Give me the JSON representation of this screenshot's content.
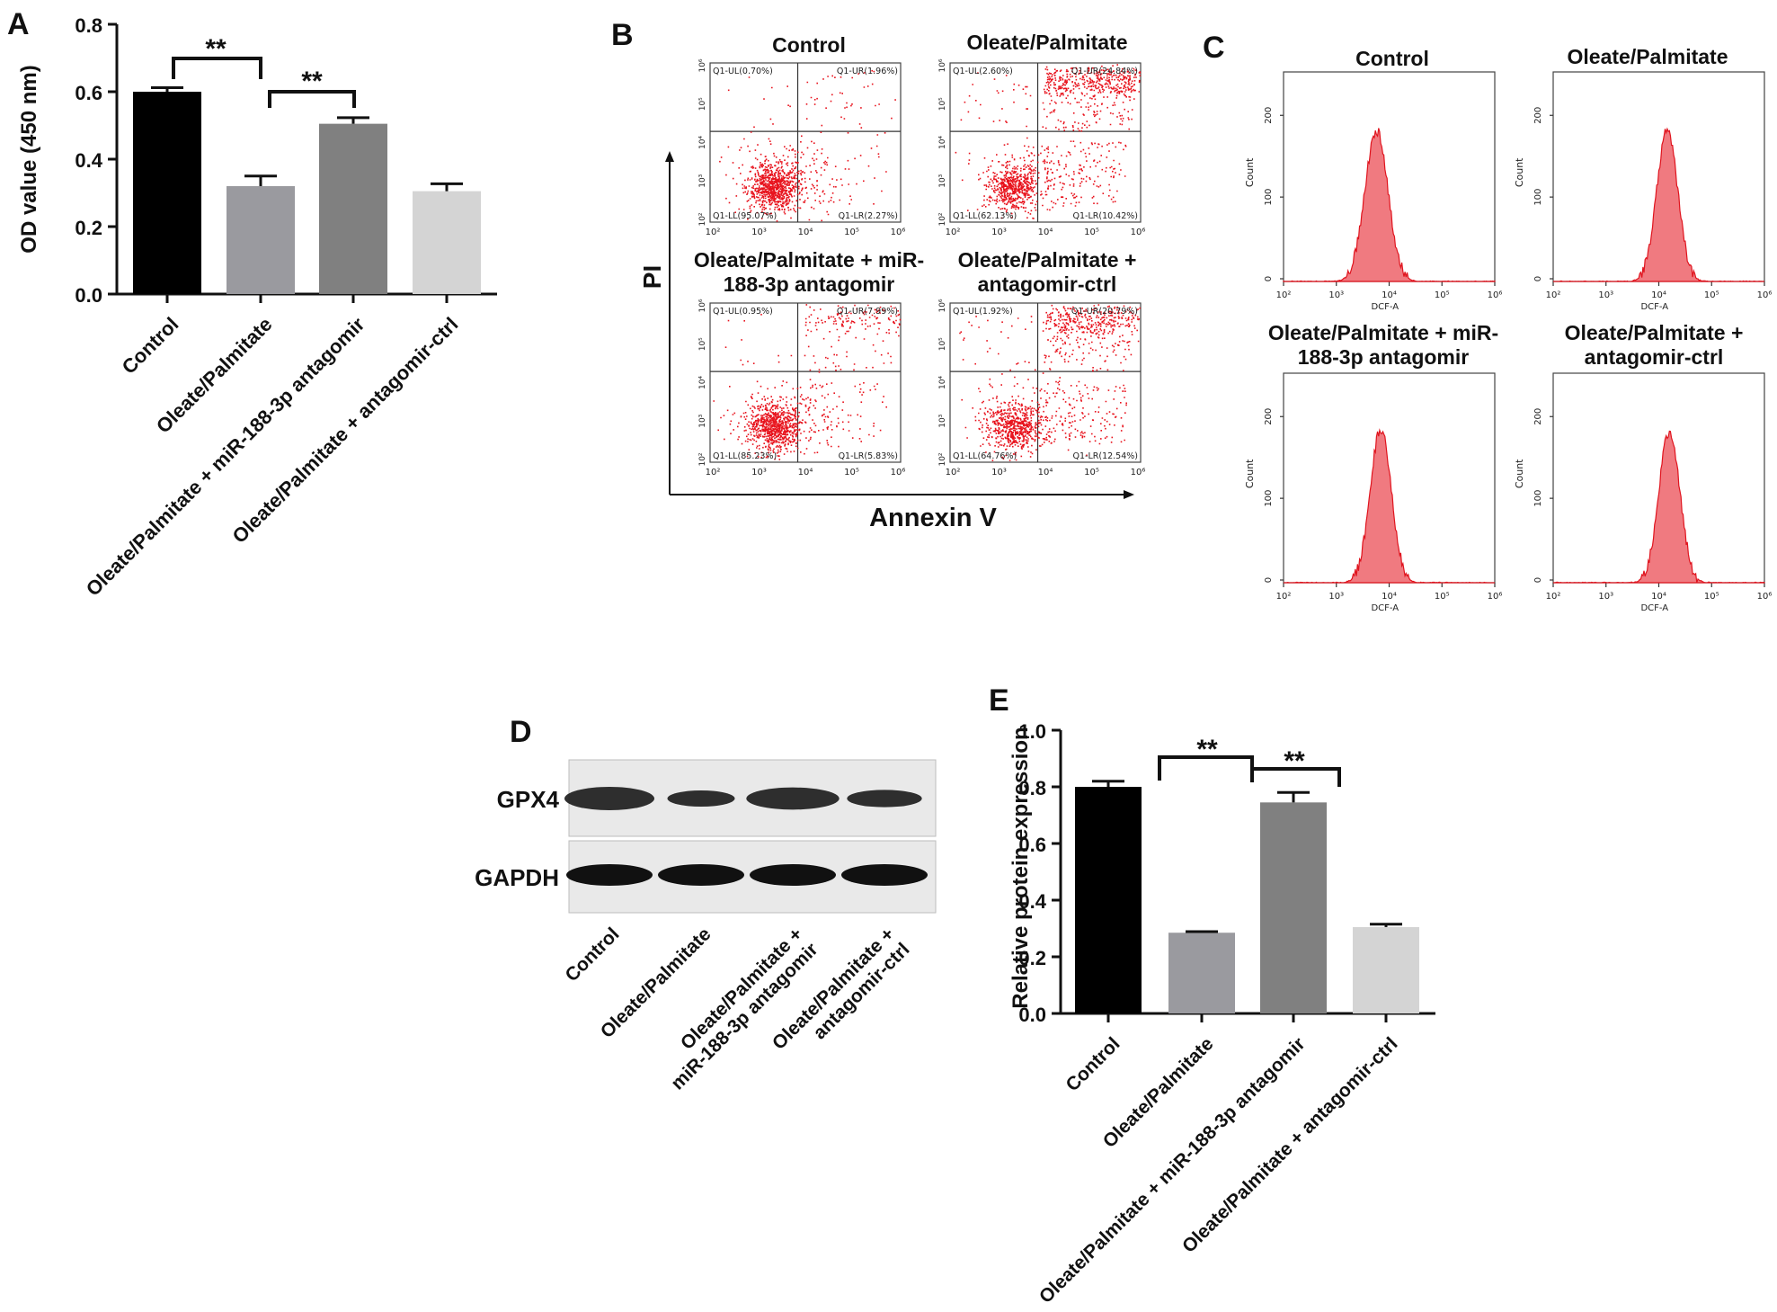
{
  "colors": {
    "control": "#000000",
    "oleate": "#9a9a9f",
    "antagomir": "#808080",
    "ctrl": "#d4d4d4",
    "flow": "#e8131d",
    "hist_fill": "#f07a80",
    "hist_line": "#e0141e"
  },
  "panels": {
    "A": "A",
    "B": "B",
    "C": "C",
    "D": "D",
    "E": "E"
  },
  "chart_data": [
    {
      "id": "A",
      "type": "bar",
      "ylabel": "OD value (450 nm)",
      "ylim": [
        0,
        0.8
      ],
      "yticks": [
        "0.0",
        "0.2",
        "0.4",
        "0.6",
        "0.8"
      ],
      "categories": [
        "Control",
        "Oleate/Palmitate",
        "Oleate/Palmitate + miR-188-3p antagomir",
        "Oleate/Palmitate + antagomir-ctrl"
      ],
      "values": [
        0.6,
        0.32,
        0.505,
        0.305
      ],
      "errors": [
        0.012,
        0.03,
        0.018,
        0.022
      ],
      "significance": [
        "**",
        "**"
      ]
    },
    {
      "id": "E",
      "type": "bar",
      "ylabel": "Relative protein expression",
      "ylim": [
        0,
        1.0
      ],
      "yticks": [
        "0.0",
        "0.2",
        "0.4",
        "0.6",
        "0.8",
        "1.0"
      ],
      "categories": [
        "Control",
        "Oleate/Palmitate",
        "Oleate/Palmitate + miR-188-3p antagomir",
        "Oleate/Palmitate + antagomir-ctrl"
      ],
      "values": [
        0.8,
        0.285,
        0.745,
        0.305
      ],
      "errors": [
        0.02,
        0.004,
        0.035,
        0.01
      ],
      "significance": [
        "**",
        "**"
      ]
    }
  ],
  "flow": {
    "xlabel": "Annexin V",
    "ylabel": "PI",
    "ticks": [
      "10²",
      "10³",
      "10⁴",
      "10⁵",
      "10⁶"
    ],
    "ytick_labels": [
      "10²",
      "10³",
      "10⁴",
      "10⁵",
      "10⁶"
    ],
    "plots": [
      {
        "title1": "Control",
        "title2": "",
        "ul": "Q1-UL(0.70%)",
        "ur": "Q1-UR(1.96%)",
        "ll": "Q1-LL(95.07%)",
        "lr": "Q1-LR(2.27%)"
      },
      {
        "title1": "Oleate/Palmitate",
        "title2": "",
        "ul": "Q1-UL(2.60%)",
        "ur": "Q1-UR(24.84%)",
        "ll": "Q1-LL(62.13%)",
        "lr": "Q1-LR(10.42%)"
      },
      {
        "title1": "Oleate/Palmitate + miR-",
        "title2": "188-3p antagomir",
        "ul": "Q1-UL(0.95%)",
        "ur": "Q1-UR(7.99%)",
        "ll": "Q1-LL(85.23%)",
        "lr": "Q1-LR(5.83%)"
      },
      {
        "title1": "Oleate/Palmitate +",
        "title2": "antagomir-ctrl",
        "ul": "Q1-UL(1.92%)",
        "ur": "Q1-UR(20.79%)",
        "ll": "Q1-LL(64.76%)",
        "lr": "Q1-LR(12.54%)"
      }
    ]
  },
  "histograms": {
    "xlabel": "DCF-A",
    "ylabel": "Count",
    "yticks": [
      "0",
      "100",
      "200"
    ],
    "xticks": [
      "10²",
      "10³",
      "10⁴",
      "10⁵",
      "10⁶"
    ],
    "plots": [
      {
        "title1": "Control",
        "title2": ""
      },
      {
        "title1": "Oleate/Palmitate",
        "title2": ""
      },
      {
        "title1": "Oleate/Palmitate + miR-",
        "title2": "188-3p antagomir"
      },
      {
        "title1": "Oleate/Palmitate +",
        "title2": "antagomir-ctrl"
      }
    ]
  },
  "blot": {
    "rows": [
      "GPX4",
      "GAPDH"
    ],
    "lanes": [
      "Control",
      "Oleate/Palmitate",
      "Oleate/Palmitate +",
      "Oleate/Palmitate +"
    ],
    "lanes2": [
      "",
      "",
      "miR-188-3p antagomir",
      "antagomir-ctrl"
    ]
  }
}
